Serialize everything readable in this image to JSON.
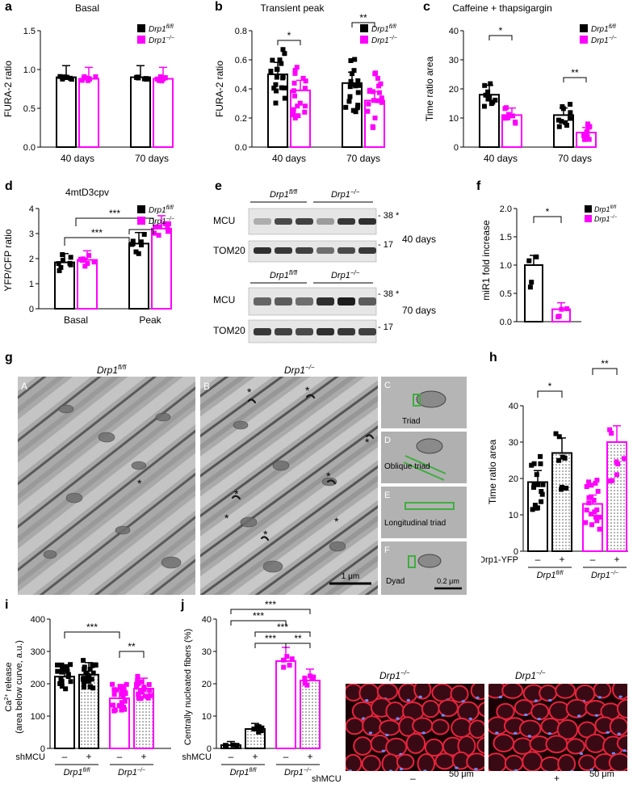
{
  "panel_labels": {
    "a": "a",
    "b": "b",
    "c": "c",
    "d": "d",
    "e": "e",
    "f": "f",
    "g": "g",
    "h": "h",
    "i": "i",
    "j": "j"
  },
  "colors": {
    "ctrl": "#000000",
    "ko": "#ff00ff",
    "bar_edge": "#000000"
  },
  "legend": {
    "ctrl": "Drp1",
    "ctrl_sup": "fl/fl",
    "ko": "Drp1",
    "ko_sup": "−/−"
  },
  "charts": {
    "a": {
      "title": "Basal",
      "ylabel": "FURA-2 ratio",
      "yticks": [
        "0.0",
        "0.5",
        "1.0",
        "1.5"
      ],
      "ylim": [
        0,
        1.5
      ],
      "categories": [
        "40 days",
        "70 days"
      ],
      "ctrl": [
        0.9,
        0.9
      ],
      "ko": [
        0.88,
        0.88
      ]
    },
    "b": {
      "title": "Transient peak",
      "ylabel": "FURA-2 ratio",
      "yticks": [
        "0.0",
        "0.2",
        "0.4",
        "0.6",
        "0.8"
      ],
      "ylim": [
        0,
        0.8
      ],
      "categories": [
        "40 days",
        "70 days"
      ],
      "ctrl": [
        0.5,
        0.44
      ],
      "ko": [
        0.39,
        0.32
      ],
      "sig": [
        "*",
        "**"
      ]
    },
    "c": {
      "title": "Caffeine + thapsigargin",
      "ylabel": "Time ratio area",
      "yticks": [
        "0",
        "10",
        "20",
        "30",
        "40"
      ],
      "ylim": [
        0,
        40
      ],
      "categories": [
        "40 days",
        "70 days"
      ],
      "ctrl": [
        18,
        11
      ],
      "ko": [
        11,
        5
      ],
      "sig": [
        "*",
        "**"
      ]
    },
    "d": {
      "title": "4mtD3cpv",
      "ylabel": "YFP/CFP ratio",
      "yticks": [
        "0",
        "1",
        "2",
        "3",
        "4"
      ],
      "ylim": [
        0,
        4
      ],
      "categories": [
        "Basal",
        "Peak"
      ],
      "ctrl": [
        1.85,
        2.6
      ],
      "ko": [
        1.95,
        3.2
      ],
      "sig": [
        "***",
        "***",
        "*"
      ]
    },
    "f": {
      "ylabel": "miR1 fold increase",
      "yticks": [
        "0.0",
        "0.5",
        "1.0",
        "1.5",
        "2.0"
      ],
      "ylim": [
        0,
        2
      ],
      "ctrl": [
        1.0
      ],
      "ko": [
        0.22
      ],
      "sig": [
        "*"
      ]
    },
    "h": {
      "ylabel": "Time ratio area",
      "yticks": [
        "0",
        "10",
        "20",
        "30",
        "40"
      ],
      "ylim": [
        0,
        40
      ],
      "values": [
        19,
        27,
        13,
        30
      ],
      "rowlabel": "Drp1-YFP",
      "signs": [
        "–",
        "+",
        "–",
        "+"
      ],
      "sig": [
        "*",
        "**"
      ]
    },
    "i": {
      "ylabel1": "Ca",
      "ylabel1_sup": "2+",
      "ylabel1_rest": " release",
      "ylabel2": "(area below curve, a.u.)",
      "yticks": [
        "0",
        "100",
        "200",
        "300",
        "400"
      ],
      "ylim": [
        0,
        400
      ],
      "values": [
        222,
        228,
        155,
        185
      ],
      "rowlabel": "shMCU",
      "signs": [
        "–",
        "+",
        "–",
        "+"
      ],
      "sig": [
        "***",
        "**"
      ]
    },
    "j": {
      "ylabel": "Centrally nucleated fibers (%)",
      "yticks": [
        "0",
        "10",
        "20",
        "30",
        "40"
      ],
      "ylim": [
        0,
        40
      ],
      "values": [
        1,
        6,
        27,
        21
      ],
      "rowlabel": "shMCU",
      "signs": [
        "–",
        "+",
        "–",
        "+"
      ],
      "sig": [
        "***",
        "***",
        "***",
        "***",
        "**"
      ]
    }
  },
  "western": {
    "header_ctrl": "Drp1",
    "header_ctrl_sup": "fl/fl",
    "header_ko": "Drp1",
    "header_ko_sup": "−/−",
    "rows": [
      "MCU",
      "TOM20",
      "MCU",
      "TOM20"
    ],
    "mw": [
      "38",
      "17",
      "38",
      "17"
    ],
    "star": "*",
    "ages": [
      "40 days",
      "70 days"
    ]
  },
  "em": {
    "title_a": "Drp1",
    "title_a_sup": "fl/fl",
    "title_b": "Drp1",
    "title_b_sup": "−/−",
    "sub": [
      "A",
      "B",
      "C",
      "D",
      "E",
      "F"
    ],
    "insets": [
      "Triad",
      "Oblique triad",
      "Longitudinal triad",
      "Dyad"
    ],
    "scale_main": "1 μm",
    "scale_inset": "0.2 μm"
  },
  "micro": {
    "title_left": "Drp1",
    "title_left_sup": "−/−",
    "title_right": "Drp1",
    "title_right_sup": "−/−",
    "rowlabel": "shMCU",
    "signs": [
      "–",
      "+"
    ],
    "scale": "50 μm"
  },
  "group": {
    "ctrl": "Drp1",
    "ctrl_sup": "fl/fl",
    "ko": "Drp1",
    "ko_sup": "−/−"
  }
}
